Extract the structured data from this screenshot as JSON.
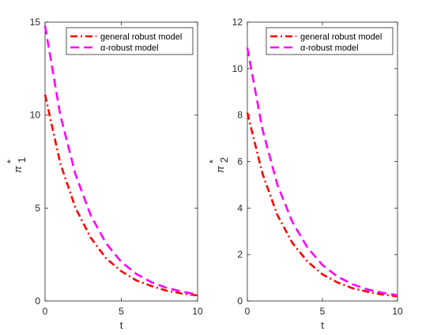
{
  "colors": {
    "general": "#ff0000",
    "alpha": "#ff00ff",
    "axis": "#262626"
  },
  "chart_data": [
    {
      "type": "line",
      "xlabel": "t",
      "ylabel_main": "π",
      "ylabel_star": "*",
      "ylabel_sub": "1",
      "xlim": [
        0,
        10
      ],
      "ylim": [
        0,
        15
      ],
      "x_ticks": [
        "0",
        "5",
        "10"
      ],
      "y_ticks": [
        "0",
        "5",
        "10",
        "15"
      ],
      "legend_position": "top-right",
      "series": [
        {
          "name": "general robust model",
          "style": "dash-dot",
          "color": "#ff0000",
          "x": [
            0,
            1,
            2,
            3,
            4,
            5,
            6,
            7,
            8,
            9,
            10
          ],
          "y": [
            11.1,
            7.4,
            5.0,
            3.4,
            2.3,
            1.6,
            1.1,
            0.8,
            0.55,
            0.4,
            0.3
          ]
        },
        {
          "name": "α-robust model",
          "style": "dashed",
          "color": "#ff00ff",
          "x": [
            0,
            1,
            2,
            3,
            4,
            5,
            6,
            7,
            8,
            9,
            10
          ],
          "y": [
            14.8,
            10.0,
            6.8,
            4.6,
            3.1,
            2.1,
            1.45,
            1.0,
            0.7,
            0.5,
            0.35
          ]
        }
      ]
    },
    {
      "type": "line",
      "xlabel": "t",
      "ylabel_main": "π",
      "ylabel_star": "*",
      "ylabel_sub": "2",
      "xlim": [
        0,
        10
      ],
      "ylim": [
        0,
        12
      ],
      "x_ticks": [
        "0",
        "5",
        "10"
      ],
      "y_ticks": [
        "0",
        "2",
        "4",
        "6",
        "8",
        "10",
        "12"
      ],
      "legend_position": "top-right",
      "series": [
        {
          "name": "general robust model",
          "style": "dash-dot",
          "color": "#ff0000",
          "x": [
            0,
            1,
            2,
            3,
            4,
            5,
            6,
            7,
            8,
            9,
            10
          ],
          "y": [
            8.1,
            5.5,
            3.7,
            2.5,
            1.7,
            1.15,
            0.8,
            0.55,
            0.4,
            0.28,
            0.2
          ]
        },
        {
          "name": "α-robust model",
          "style": "dashed",
          "color": "#ff00ff",
          "x": [
            0,
            1,
            2,
            3,
            4,
            5,
            6,
            7,
            8,
            9,
            10
          ],
          "y": [
            10.9,
            7.4,
            5.0,
            3.4,
            2.3,
            1.55,
            1.05,
            0.72,
            0.5,
            0.35,
            0.25
          ]
        }
      ]
    }
  ]
}
